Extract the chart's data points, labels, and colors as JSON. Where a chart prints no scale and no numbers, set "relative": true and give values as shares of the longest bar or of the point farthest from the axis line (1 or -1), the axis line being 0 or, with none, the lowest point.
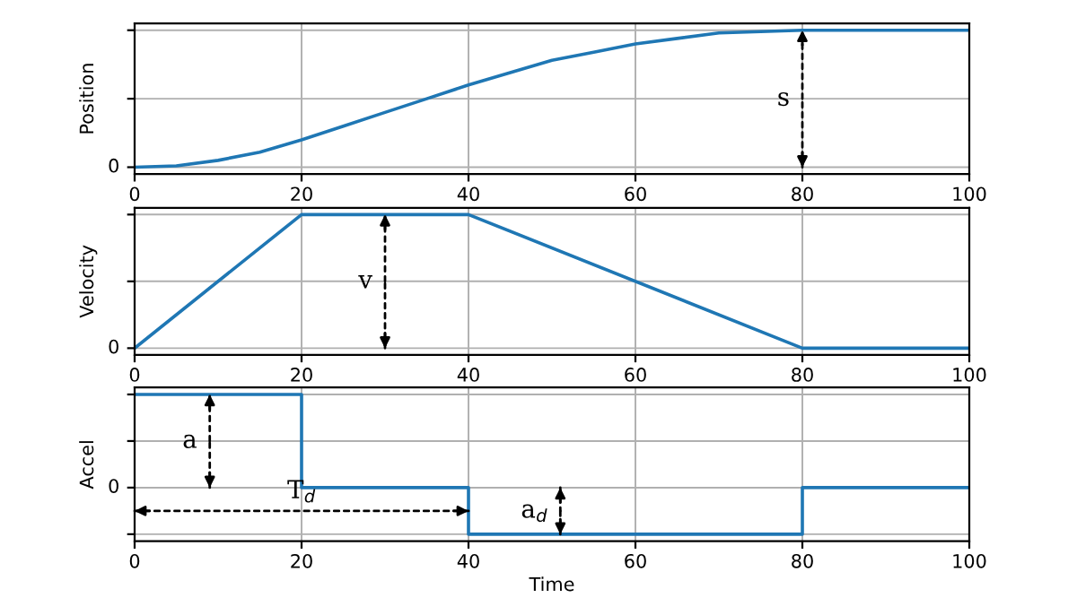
{
  "chart_data": [
    {
      "type": "line",
      "ylabel": "Position",
      "relative": true,
      "x": [
        0,
        5,
        10,
        15,
        20,
        25,
        30,
        35,
        40,
        45,
        50,
        55,
        60,
        65,
        70,
        75,
        80,
        85,
        90,
        95,
        100
      ],
      "series": [
        {
          "color": "#1f77b4",
          "values": [
            0,
            0.01,
            0.05,
            0.11,
            0.2,
            0.3,
            0.4,
            0.5,
            0.6,
            0.69,
            0.78,
            0.84,
            0.9,
            0.94,
            0.98,
            0.99,
            1,
            1,
            1,
            1,
            1
          ]
        }
      ],
      "xlim": [
        0,
        100
      ],
      "xticks": [
        0,
        20,
        40,
        60,
        80,
        100
      ],
      "grid": true,
      "annotations": [
        "0",
        {
          "text": "s",
          "x": 80,
          "y": 1
        }
      ]
    },
    {
      "type": "line",
      "ylabel": "Velocity",
      "relative": true,
      "x": [
        0,
        20,
        40,
        80,
        100
      ],
      "series": [
        {
          "color": "#1f77b4",
          "values": [
            0,
            1,
            1,
            0,
            0
          ]
        }
      ],
      "xlim": [
        0,
        100
      ],
      "xticks": [
        0,
        20,
        40,
        60,
        80,
        100
      ],
      "grid": true,
      "annotations": [
        "0",
        {
          "text": "v",
          "x": 30,
          "y": 1
        }
      ]
    },
    {
      "type": "step",
      "xlabel": "Time",
      "ylabel": "Accel",
      "relative": true,
      "x": [
        0,
        20,
        40,
        80,
        100
      ],
      "series": [
        {
          "color": "#1f77b4",
          "values": [
            1,
            0,
            -0.5,
            0,
            0
          ]
        }
      ],
      "xlim": [
        0,
        100
      ],
      "xticks": [
        0,
        20,
        40,
        60,
        80,
        100
      ],
      "grid": true,
      "annotations": [
        "0",
        {
          "text": "a",
          "x": 9,
          "y": 1
        },
        "T$_{d}$",
        {
          "text": "a$_{d}$",
          "x": 51,
          "y": -0.5
        }
      ]
    }
  ]
}
